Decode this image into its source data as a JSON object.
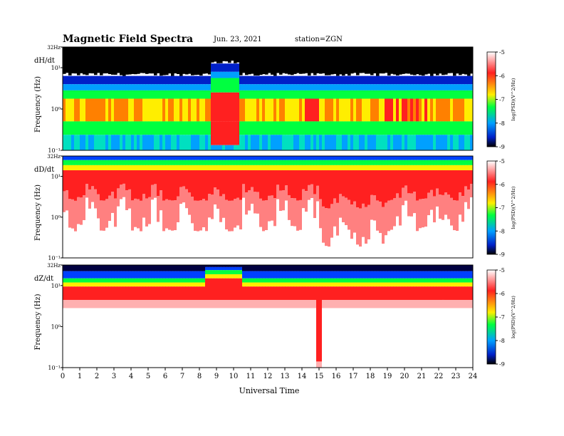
{
  "header": {
    "title": "Magnetic  Field  Spectra",
    "date": "Jun. 23, 2021",
    "station": "station=ZGN"
  },
  "colorbar": {
    "label": "log(PSD)(V^2/Hz)",
    "ticks": [
      "-5",
      "-6",
      "-7",
      "-8",
      "-9"
    ],
    "colors": [
      "#ffffff",
      "#ff2020",
      "#ffee00",
      "#00ff40",
      "#00a0ff",
      "#0020c8",
      "#000000"
    ]
  },
  "chart_data": [
    {
      "type": "heatmap",
      "panel": "dH/dt",
      "ylabel": "Frequency  (Hz)",
      "ytick_labels": [
        "32Hz",
        "10¹",
        "10⁰",
        "10⁻¹"
      ],
      "xlabel": "Universal  Time",
      "xlim": [
        0,
        24
      ],
      "clim": [
        -9,
        -5
      ],
      "description_profile": "Dark-blue/black above ~3 Hz; green-yellow band 1–3 Hz with red patches; strongest red burst at 9–10 UT and ~14.5 UT; broad red 19–21 UT; blue speckle below 0.5 Hz."
    },
    {
      "type": "heatmap",
      "panel": "dD/dt",
      "ylabel": "Frequency  (Hz)",
      "ytick_labels": [
        "32Hz",
        "10¹",
        "10⁰",
        "10⁻¹"
      ],
      "xlabel": "Universal  Time",
      "xlim": [
        0,
        24
      ],
      "clim": [
        -9,
        -5
      ]
    },
    {
      "type": "heatmap",
      "panel": "dZ/dt",
      "ylabel": "Frequency  (Hz)",
      "ytick_labels": [
        "32Hz",
        "10¹",
        "10⁰",
        "10⁻¹"
      ],
      "xlabel": "Universal  Time",
      "xlim": [
        0,
        24
      ],
      "clim": [
        -9,
        -5
      ]
    }
  ],
  "xaxis": {
    "ticks": [
      "0",
      "1",
      "2",
      "3",
      "4",
      "5",
      "6",
      "7",
      "8",
      "9",
      "10",
      "11",
      "12",
      "13",
      "14",
      "15",
      "16",
      "17",
      "18",
      "19",
      "20",
      "21",
      "22",
      "23",
      "24"
    ],
    "label": "Universal  Time"
  }
}
